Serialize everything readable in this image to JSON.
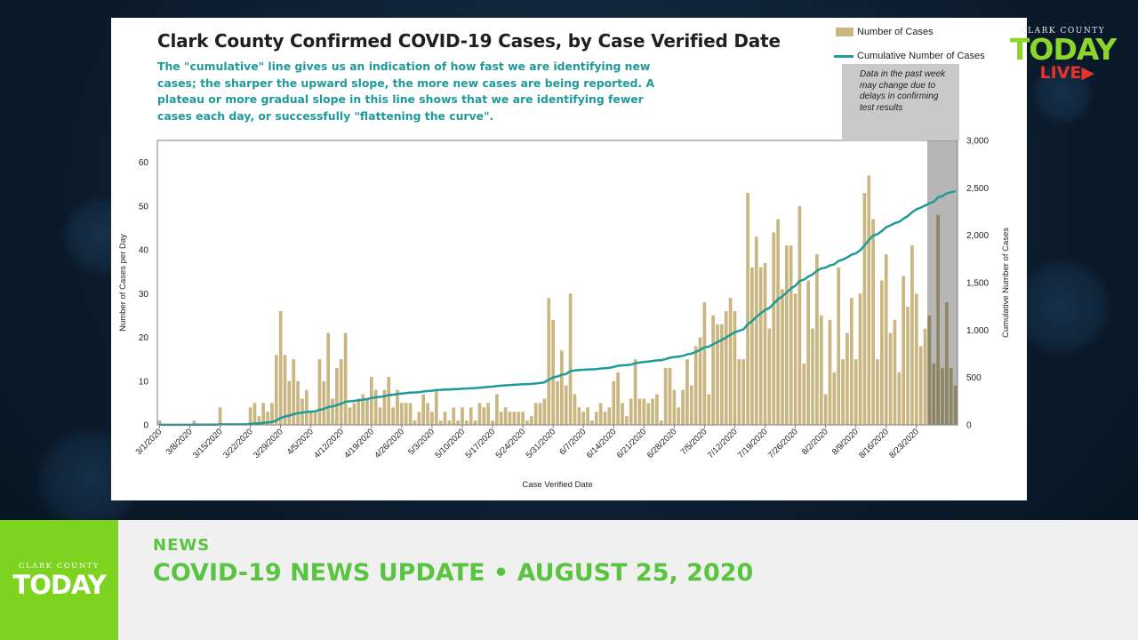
{
  "chart_data": {
    "type": "bar+line",
    "title": "Clark County Confirmed COVID-19 Cases, by Case Verified Date",
    "subtitle": "The \"cumulative\" line gives  us an indication of how fast we are identifying new cases; the sharper the upward slope, the more new cases are being reported. A plateau or more gradual slope in this line shows that we are identifying fewer cases each day, or successfully \"flattening the curve\".",
    "xlabel": "Case Verified Date",
    "ylabel_left": "Number of Cases per Day",
    "ylabel_right": "Cumulative Number of Cases",
    "ylim_left": [
      0,
      65
    ],
    "ylim_right": [
      0,
      3000
    ],
    "yticks_left": [
      0,
      10,
      20,
      30,
      40,
      50,
      60
    ],
    "yticks_right": [
      "0",
      "500",
      "1,000",
      "1,500",
      "2,000",
      "2,500",
      "3,000"
    ],
    "x_tick_labels": [
      "3/1/2020",
      "3/8/2020",
      "3/15/2020",
      "3/22/2020",
      "3/29/2020",
      "4/5/2020",
      "4/12/2020",
      "4/19/2020",
      "4/26/2020",
      "5/3/2020",
      "5/10/2020",
      "5/17/2020",
      "5/24/2020",
      "5/31/2020",
      "6/7/2020",
      "6/14/2020",
      "6/21/2020",
      "6/28/2020",
      "7/5/2020",
      "7/12/2020",
      "7/19/2020",
      "7/26/2020",
      "8/2/2020",
      "8/9/2020",
      "8/16/2020",
      "8/23/2020"
    ],
    "start_date": "3/1/2020",
    "legend_position": "top-right",
    "series": [
      {
        "name": "Number of Cases",
        "type": "bar",
        "color": "#c9b681",
        "values": [
          1,
          0,
          0,
          0,
          0,
          0,
          0,
          0,
          1,
          0,
          0,
          0,
          0,
          0,
          4,
          0,
          0,
          0,
          0,
          0,
          0,
          4,
          5,
          2,
          5,
          3,
          5,
          16,
          26,
          16,
          10,
          15,
          10,
          6,
          8,
          3,
          3,
          15,
          10,
          21,
          6,
          13,
          15,
          21,
          4,
          5,
          6,
          7,
          6,
          11,
          8,
          4,
          8,
          11,
          4,
          8,
          5,
          5,
          5,
          1,
          3,
          7,
          5,
          3,
          8,
          1,
          3,
          1,
          4,
          1,
          4,
          1,
          4,
          1,
          5,
          4,
          5,
          1,
          7,
          3,
          4,
          3,
          3,
          3,
          3,
          1,
          2,
          5,
          5,
          6,
          29,
          24,
          10,
          17,
          9,
          30,
          7,
          4,
          3,
          4,
          1,
          3,
          5,
          3,
          4,
          10,
          12,
          5,
          2,
          6,
          15,
          6,
          6,
          5,
          6,
          7,
          1,
          13,
          13,
          8,
          4,
          8,
          15,
          9,
          18,
          20,
          28,
          7,
          25,
          23,
          23,
          26,
          29,
          26,
          15,
          15,
          53,
          36,
          43,
          36,
          37,
          22,
          44,
          47,
          31,
          41,
          41,
          30,
          50,
          14,
          33,
          22,
          39,
          25,
          7,
          24,
          12,
          36,
          15,
          21,
          29,
          15,
          30,
          53,
          57,
          47,
          15,
          33,
          39,
          21,
          24,
          12,
          34,
          27,
          41,
          30,
          18,
          22,
          25,
          14,
          48,
          13,
          28,
          13,
          9
        ],
        "note": "values estimated from bar heights; one bar per day from 3/1/2020"
      },
      {
        "name": "Cumulative Number of Cases",
        "type": "line",
        "color": "#1e9a99",
        "axis": "right"
      }
    ],
    "shaded_region": {
      "label": "Data in the past week may change due to delays in confirming test results",
      "days": 7
    }
  },
  "logo": {
    "county_text": "CLARK COUNTY",
    "today_text": "TODAY",
    "live_text": "LIVE"
  },
  "lower_third": {
    "category": "NEWS",
    "headline": "COVID-19 NEWS UPDATE • AUGUST 25, 2020",
    "logo_county": "CLARK COUNTY",
    "logo_today": "TODAY"
  },
  "colors": {
    "bar": "#c9b681",
    "line": "#1e9a99",
    "accent_green": "#58c43f",
    "live_red": "#e8322a"
  }
}
